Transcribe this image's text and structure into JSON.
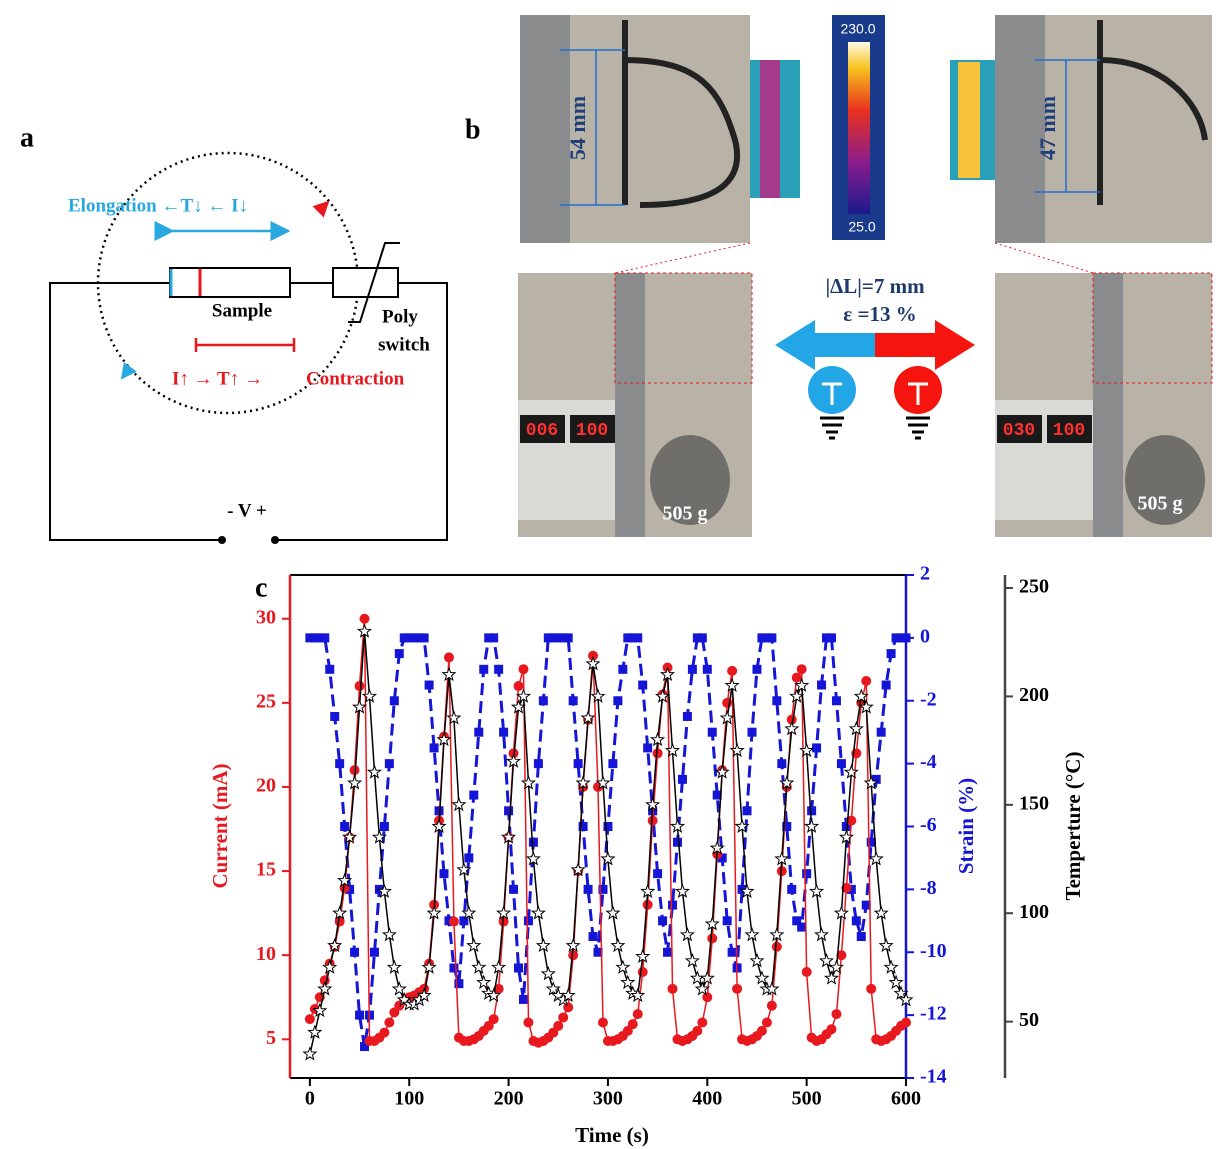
{
  "panel_a": {
    "label": "a",
    "elongation": "Elongation ←T↓ ← I↓",
    "sample": "Sample",
    "poly": "Poly",
    "switch": "switch",
    "current_rise": "I↑ → T↑ →",
    "contraction": "Contraction",
    "voltage": "- V +"
  },
  "panel_b": {
    "label": "b",
    "length_before": "54 mm",
    "length_after": "47 mm",
    "colorbar_max": "230.0",
    "colorbar_min": "25.0",
    "delta_length": "|ΔL|=7 mm",
    "strain": "ε =13 %",
    "mass_left": "505 g",
    "mass_right": "505 g",
    "reading_left_current": "006",
    "reading_left_voltage": "100",
    "reading_right_current": "030",
    "reading_right_voltage": "100"
  },
  "panel_c": {
    "label": "c"
  },
  "chart_data": {
    "type": "line",
    "xlabel": "Time (s)",
    "ylabel": "Current (mA)",
    "y2label": "Strain (%)",
    "y3label": "Temperture (°C)",
    "xlim": [
      -20,
      600
    ],
    "xticks": [
      0,
      100,
      200,
      300,
      400,
      500,
      600
    ],
    "ylim": [
      2.7,
      32.6
    ],
    "yticks": [
      5,
      10,
      15,
      20,
      25,
      30
    ],
    "y2lim": [
      -14,
      2
    ],
    "y2ticks": [
      2,
      0,
      -2,
      -4,
      -6,
      -8,
      -10,
      -12,
      -14
    ],
    "y3lim": [
      24,
      256
    ],
    "y3ticks": [
      50,
      100,
      150,
      200,
      250
    ],
    "x": [
      0,
      5,
      10,
      15,
      20,
      25,
      30,
      35,
      40,
      45,
      50,
      55,
      60,
      65,
      70,
      75,
      80,
      85,
      90,
      95,
      100,
      105,
      110,
      115,
      120,
      125,
      130,
      135,
      140,
      145,
      150,
      155,
      160,
      165,
      170,
      175,
      180,
      185,
      190,
      195,
      200,
      205,
      210,
      215,
      220,
      225,
      230,
      235,
      240,
      245,
      250,
      255,
      260,
      265,
      270,
      275,
      280,
      285,
      290,
      295,
      300,
      305,
      310,
      315,
      320,
      325,
      330,
      335,
      340,
      345,
      350,
      355,
      360,
      365,
      370,
      375,
      380,
      385,
      390,
      395,
      400,
      405,
      410,
      415,
      420,
      425,
      430,
      435,
      440,
      445,
      450,
      455,
      460,
      465,
      470,
      475,
      480,
      485,
      490,
      495,
      500,
      505,
      510,
      515,
      520,
      525,
      530,
      535,
      540,
      545,
      550,
      555,
      560,
      565,
      570,
      575,
      580,
      585,
      590,
      595,
      600
    ],
    "series": [
      {
        "color": "#1515d8",
        "axis": "y2",
        "marker": "square",
        "dashed": true,
        "values": [
          0,
          0,
          0,
          0,
          -1,
          -2.5,
          -4,
          -6,
          -8,
          -10,
          -12,
          -13,
          -12,
          -10,
          -8,
          -6,
          -4,
          -2,
          -0.5,
          0,
          0,
          0,
          0,
          0,
          -1.5,
          -3.5,
          -5.5,
          -7.5,
          -9,
          -10.5,
          -11,
          -9,
          -7,
          -5,
          -3,
          -1,
          0,
          0,
          -1,
          -3,
          -5.5,
          -8,
          -10.5,
          -11.5,
          -9,
          -6.5,
          -4,
          -2,
          0,
          0,
          0,
          0,
          0,
          -2,
          -4,
          -6,
          -8,
          -9.5,
          -10,
          -8,
          -6,
          -4,
          -2,
          -1,
          0,
          0,
          0,
          -1.5,
          -3.5,
          -5.5,
          -7.5,
          -9,
          -10,
          -8.5,
          -6.5,
          -4.5,
          -2.5,
          -1,
          0,
          0,
          -1,
          -3,
          -5,
          -7,
          -9,
          -10,
          -10.5,
          -8,
          -5.5,
          -3,
          -1,
          0,
          0,
          0,
          -2,
          -4,
          -6,
          -8,
          -9,
          -9.2,
          -7.5,
          -5.5,
          -3.5,
          -1.5,
          0,
          0,
          -2,
          -4,
          -6,
          -8,
          -9,
          -9.5,
          -8.5,
          -6.5,
          -4.5,
          -3,
          -1.5,
          -0.5,
          0,
          0,
          0
        ]
      },
      {
        "color": "#e8191e",
        "axis": "y",
        "marker": "circle",
        "dashed": false,
        "values": [
          6.2,
          6.8,
          7.5,
          8.5,
          9.5,
          10.5,
          12,
          14,
          17,
          21,
          26,
          30,
          4.9,
          4.9,
          5.1,
          5.4,
          6,
          6.6,
          7,
          7.3,
          7.5,
          7.6,
          7.8,
          8,
          9.5,
          13,
          18,
          23,
          27.7,
          12,
          5.1,
          4.9,
          4.9,
          5,
          5.2,
          5.5,
          5.8,
          6.2,
          8,
          12,
          17,
          22,
          26,
          27,
          6,
          4.9,
          4.8,
          4.9,
          5.1,
          5.4,
          5.8,
          6.3,
          6.9,
          10,
          15,
          20,
          24,
          27.8,
          20,
          6,
          4.9,
          4.9,
          5,
          5.2,
          5.5,
          5.9,
          6.5,
          9,
          13,
          18,
          22,
          25.5,
          27.1,
          8,
          5,
          4.9,
          5,
          5.2,
          5.5,
          6,
          7.5,
          11,
          16,
          21,
          25,
          26.9,
          8,
          5,
          4.9,
          5,
          5.2,
          5.5,
          6,
          7,
          10.5,
          15,
          20,
          24,
          26.5,
          27,
          9,
          5.1,
          4.9,
          5,
          5.3,
          5.6,
          6.5,
          10,
          14,
          18,
          22,
          25,
          26.3,
          8,
          5,
          4.9,
          5,
          5.2,
          5.5,
          5.8,
          6
        ]
      },
      {
        "color": "#000000",
        "axis": "y3",
        "marker": "star",
        "dashed": false,
        "values": [
          35,
          45,
          55,
          65,
          75,
          85,
          100,
          115,
          135,
          160,
          195,
          230,
          200,
          165,
          135,
          110,
          90,
          75,
          65,
          60,
          58,
          58,
          60,
          62,
          75,
          100,
          140,
          180,
          210,
          190,
          150,
          120,
          100,
          85,
          75,
          68,
          63,
          62,
          75,
          100,
          135,
          170,
          195,
          200,
          160,
          125,
          100,
          85,
          72,
          65,
          62,
          60,
          62,
          85,
          120,
          160,
          190,
          215,
          200,
          160,
          125,
          100,
          85,
          75,
          68,
          63,
          62,
          80,
          110,
          150,
          180,
          200,
          210,
          175,
          140,
          110,
          90,
          78,
          70,
          65,
          70,
          95,
          130,
          165,
          190,
          205,
          175,
          140,
          110,
          90,
          78,
          70,
          65,
          65,
          90,
          125,
          160,
          185,
          200,
          205,
          175,
          140,
          110,
          90,
          78,
          70,
          75,
          100,
          135,
          165,
          185,
          200,
          195,
          160,
          125,
          100,
          85,
          75,
          68,
          63,
          60
        ]
      }
    ]
  }
}
